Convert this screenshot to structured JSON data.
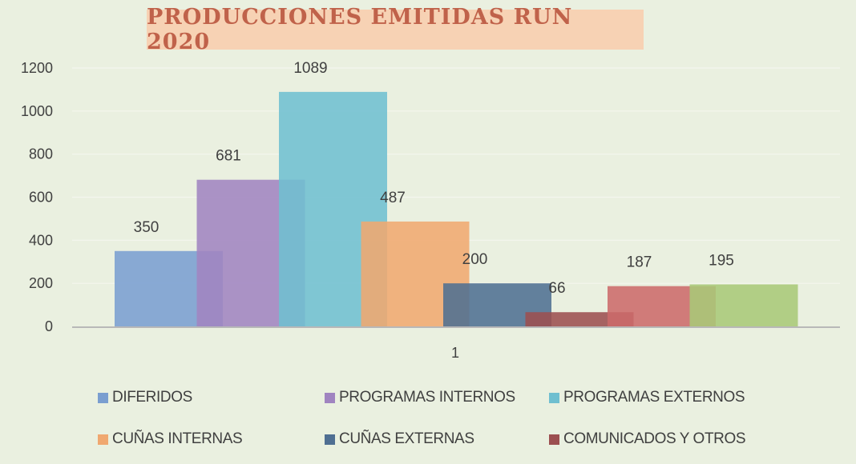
{
  "chart_data": {
    "type": "bar",
    "title": "PRODUCCIONES EMITIDAS RUN 2020",
    "categories": [
      "1"
    ],
    "series": [
      {
        "name": "DIFERIDOS",
        "values": [
          350
        ],
        "color": "#7a9ed0"
      },
      {
        "name": "PROGRAMAS INTERNOS",
        "values": [
          681
        ],
        "color": "#a084c0"
      },
      {
        "name": "PROGRAMAS EXTERNOS",
        "values": [
          1089
        ],
        "color": "#6fbfd0"
      },
      {
        "name": "CUÑAS INTERNAS",
        "values": [
          487
        ],
        "color": "#f0a870"
      },
      {
        "name": "CUÑAS EXTERNAS",
        "values": [
          200
        ],
        "color": "#4f6f92"
      },
      {
        "name": "COMUNICADOS Y OTROS",
        "values": [
          66
        ],
        "color": "#9c4f50"
      },
      {
        "name": "",
        "values": [
          187
        ],
        "color": "#cc6a6a"
      },
      {
        "name": "",
        "values": [
          195
        ],
        "color": "#a8c878"
      }
    ],
    "y_ticks": [
      "0",
      "200",
      "400",
      "600",
      "800",
      "1000",
      "1200"
    ],
    "ylim": [
      0,
      1200
    ],
    "grid": true,
    "legend_position": "bottom",
    "xlabel": "",
    "ylabel": ""
  },
  "colors": {
    "background": "#eaf0e0",
    "title_box": "#f7d2b4",
    "title_text": "#c0624a",
    "axis": "#b8b8b8",
    "gridline": "#f4f6ee"
  }
}
